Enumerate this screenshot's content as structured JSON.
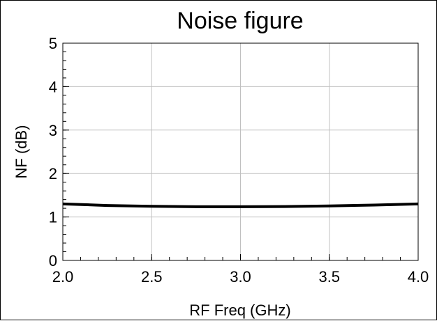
{
  "chart_data": {
    "type": "line",
    "title": "Noise figure",
    "xlabel": "RF Freq (GHz)",
    "ylabel": "NF (dB)",
    "xlim": [
      2.0,
      4.0
    ],
    "ylim": [
      0,
      5
    ],
    "x_ticks": [
      "2.0",
      "2.5",
      "3.0",
      "3.5",
      "4.0"
    ],
    "y_ticks": [
      "0",
      "1",
      "2",
      "3",
      "4",
      "5"
    ],
    "grid": true,
    "legend": "none",
    "series": [
      {
        "color": "#000000",
        "x": [
          2.0,
          2.25,
          2.5,
          2.75,
          3.0,
          3.25,
          3.5,
          3.75,
          4.0
        ],
        "y": [
          1.3,
          1.265,
          1.245,
          1.235,
          1.235,
          1.24,
          1.255,
          1.275,
          1.3
        ]
      }
    ]
  }
}
